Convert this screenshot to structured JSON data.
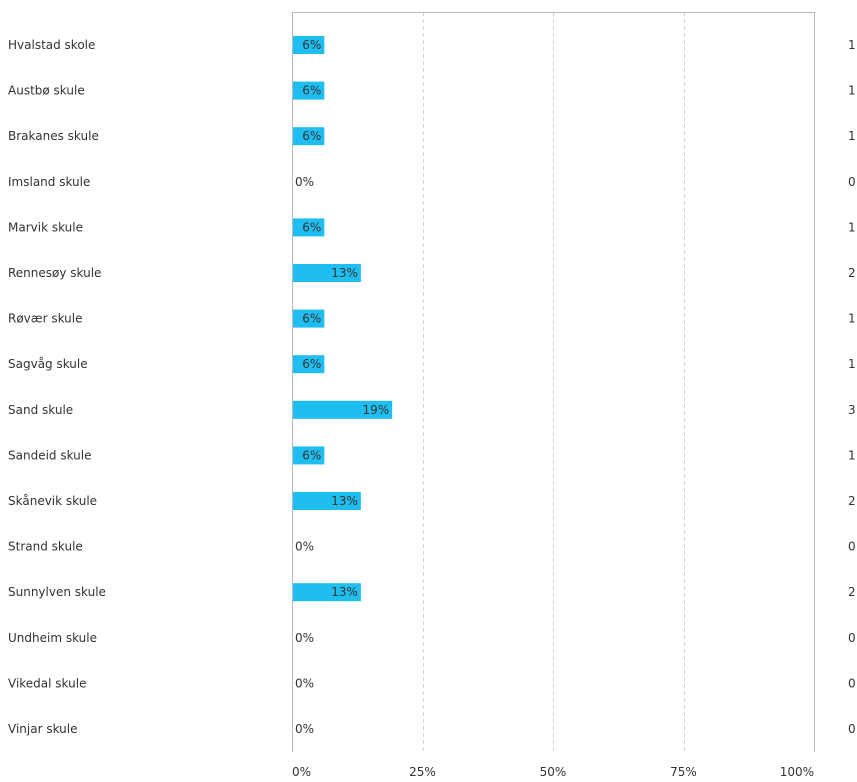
{
  "chart_data": {
    "type": "bar",
    "orientation": "horizontal",
    "categories": [
      "Hvalstad skole",
      "Austbø skule",
      "Brakanes skule",
      "Imsland skule",
      "Marvik skule",
      "Rennesøy skule",
      "Røvær skule",
      "Sagvåg skule",
      "Sand skule",
      "Sandeid skule",
      "Skånevik skule",
      "Strand skule",
      "Sunnylven skule",
      "Undheim skule",
      "Vikedal skule",
      "Vinjar skule"
    ],
    "values": [
      6,
      6,
      6,
      0,
      6,
      13,
      6,
      6,
      19,
      6,
      13,
      0,
      13,
      0,
      0,
      0
    ],
    "value_labels": [
      "6%",
      "6%",
      "6%",
      "0%",
      "6%",
      "13%",
      "6%",
      "6%",
      "19%",
      "6%",
      "13%",
      "0%",
      "13%",
      "0%",
      "0%",
      "0%"
    ],
    "counts": [
      "1",
      "1",
      "1",
      "0",
      "1",
      "2",
      "1",
      "1",
      "3",
      "1",
      "2",
      "0",
      "2",
      "0",
      "0",
      "0"
    ],
    "xlim": [
      0,
      100
    ],
    "x_ticks": [
      0,
      25,
      50,
      75,
      100
    ],
    "x_tick_labels": [
      "0%",
      "25%",
      "50%",
      "75%",
      "100%"
    ],
    "grid": true,
    "bar_color": "#1fbef0",
    "grid_color": "#d4d4d4",
    "axis_color": "#b8b8b8",
    "text_color": "#333333"
  }
}
